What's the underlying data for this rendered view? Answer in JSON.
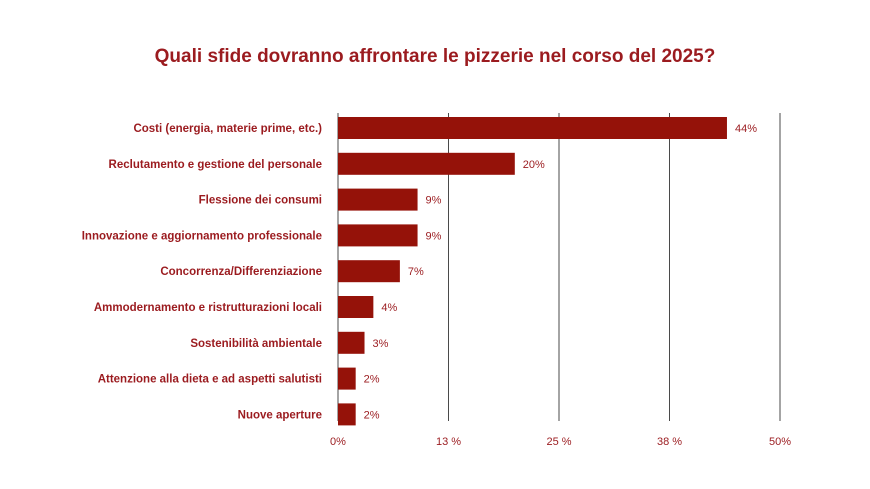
{
  "chart_data": {
    "type": "bar",
    "orientation": "horizontal",
    "title": "Quali sfide dovranno affrontare le pizzerie nel corso del 2025?",
    "categories": [
      "Costi (energia, materie prime, etc.)",
      "Reclutamento e gestione del personale",
      "Flessione dei consumi",
      "Innovazione e aggiornamento professionale",
      "Concorrenza/Differenziazione",
      "Ammodernamento e ristrutturazioni locali",
      "Sostenibilità ambientale",
      "Attenzione alla dieta e ad aspetti salutisti",
      "Nuove aperture"
    ],
    "values": [
      44,
      20,
      9,
      9,
      7,
      4,
      3,
      2,
      2
    ],
    "value_labels": [
      "44%",
      "20%",
      "9%",
      "9%",
      "7%",
      "4%",
      "3%",
      "2%",
      "2%"
    ],
    "xlim": [
      0,
      50
    ],
    "xticks": [
      0,
      12.5,
      25,
      37.5,
      50
    ],
    "xtick_labels": [
      "0%",
      "13 %",
      "25 %",
      "38 %",
      "50%"
    ],
    "grid": true,
    "bar_color": "#951209",
    "text_color": "#9b1b1f",
    "grid_color": "#4a4a4a"
  }
}
